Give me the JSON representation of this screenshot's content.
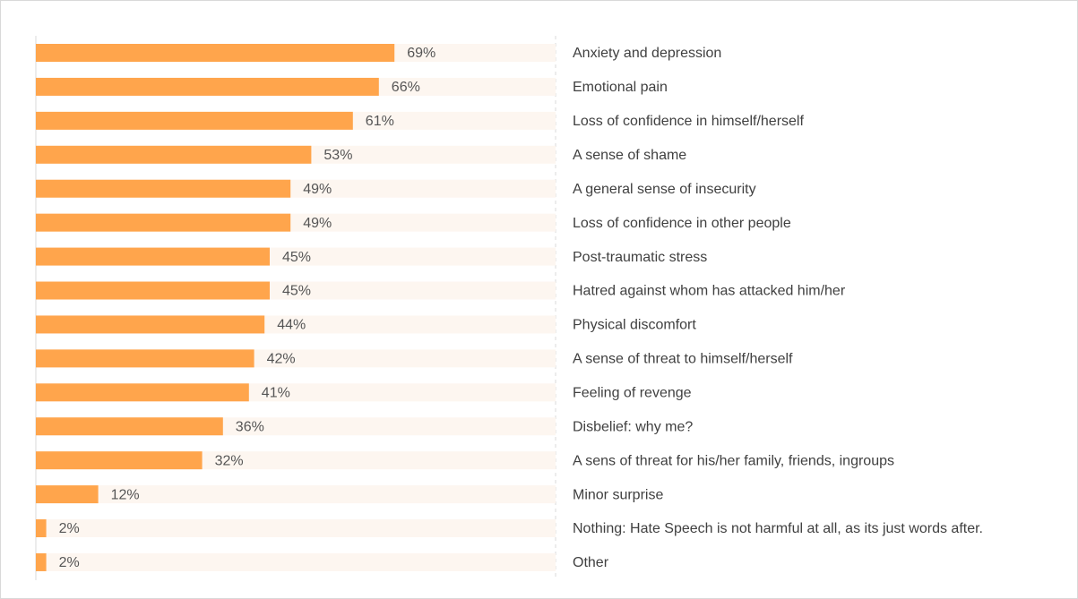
{
  "chart_data": {
    "type": "bar",
    "orientation": "horizontal",
    "categories": [
      "Anxiety and depression",
      "Emotional pain",
      "Loss of confidence in himself/herself",
      "A sense of shame",
      "A general sense of insecurity",
      "Loss of confidence in other people",
      "Post-traumatic stress",
      "Hatred against whom has attacked him/her",
      "Physical discomfort",
      "A sense of threat to himself/herself",
      "Feeling of revenge",
      "Disbelief: why me?",
      "A sens of threat for his/her family, friends, ingroups",
      "Minor surprise",
      "Nothing: Hate Speech is not harmful at all, as its just words after.",
      "Other"
    ],
    "values": [
      69,
      66,
      61,
      53,
      49,
      49,
      45,
      45,
      44,
      42,
      41,
      36,
      32,
      12,
      2,
      2
    ],
    "value_labels": [
      "69%",
      "66%",
      "61%",
      "53%",
      "49%",
      "49%",
      "45%",
      "45%",
      "44%",
      "42%",
      "41%",
      "36%",
      "32%",
      "12%",
      "2%",
      "2%"
    ],
    "color": "#ffa54c",
    "xlim": [
      0,
      100
    ]
  }
}
